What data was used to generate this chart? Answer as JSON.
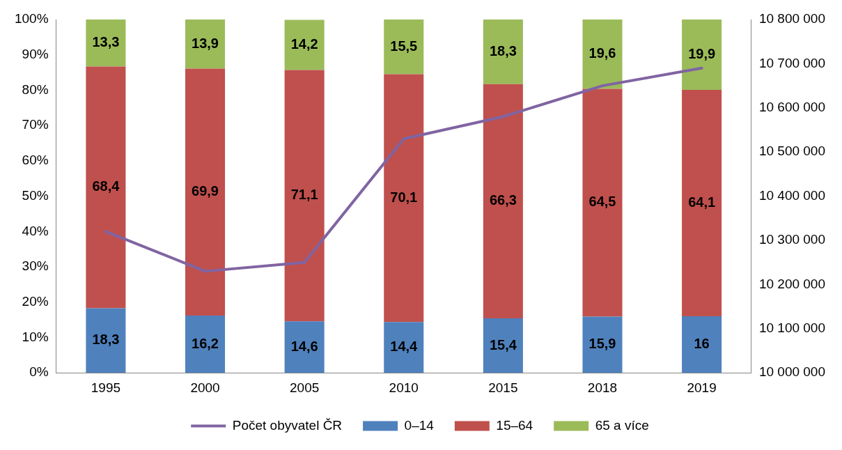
{
  "chart_data": {
    "type": "bar",
    "stacked": true,
    "categories": [
      "1995",
      "2000",
      "2005",
      "2010",
      "2015",
      "2018",
      "2019"
    ],
    "series": [
      {
        "name": "0–14",
        "color": "#4f81bd",
        "values": [
          18.3,
          16.2,
          14.6,
          14.4,
          15.4,
          15.9,
          16
        ],
        "value_labels": [
          "18,3",
          "16,2",
          "14,6",
          "14,4",
          "15,4",
          "15,9",
          "16"
        ]
      },
      {
        "name": "15–64",
        "color": "#c0504d",
        "values": [
          68.4,
          69.9,
          71.1,
          70.1,
          66.3,
          64.5,
          64.1
        ],
        "value_labels": [
          "68,4",
          "69,9",
          "71,1",
          "70,1",
          "66,3",
          "64,5",
          "64,1"
        ]
      },
      {
        "name": "65 a více",
        "color": "#9bbb59",
        "values": [
          13.3,
          13.9,
          14.2,
          15.5,
          18.3,
          19.6,
          19.9
        ],
        "value_labels": [
          "13,3",
          "13,9",
          "14,2",
          "15,5",
          "18,3",
          "19,6",
          "19,9"
        ]
      },
      {
        "name": "Počet obyvatel ČR",
        "type": "line",
        "axis": "y2",
        "color": "#8064a2",
        "values": [
          10320000,
          10230000,
          10250000,
          10530000,
          10580000,
          10650000,
          10690000
        ]
      }
    ],
    "ylim": [
      0,
      100
    ],
    "yticks": [
      {
        "value": 0,
        "label": "0%"
      },
      {
        "value": 10,
        "label": "10%"
      },
      {
        "value": 20,
        "label": "20%"
      },
      {
        "value": 30,
        "label": "30%"
      },
      {
        "value": 40,
        "label": "40%"
      },
      {
        "value": 50,
        "label": "50%"
      },
      {
        "value": 60,
        "label": "60%"
      },
      {
        "value": 70,
        "label": "70%"
      },
      {
        "value": 80,
        "label": "80%"
      },
      {
        "value": 90,
        "label": "90%"
      },
      {
        "value": 100,
        "label": "100%"
      }
    ],
    "y2lim": [
      10000000,
      10800000
    ],
    "y2ticks": [
      {
        "value": 10000000,
        "label": "10 000 000"
      },
      {
        "value": 10100000,
        "label": "10 100 000"
      },
      {
        "value": 10200000,
        "label": "10 200 000"
      },
      {
        "value": 10300000,
        "label": "10 300 000"
      },
      {
        "value": 10400000,
        "label": "10 400 000"
      },
      {
        "value": 10500000,
        "label": "10 500 000"
      },
      {
        "value": 10600000,
        "label": "10 600 000"
      },
      {
        "value": 10700000,
        "label": "10 700 000"
      },
      {
        "value": 10800000,
        "label": "10 800 000"
      }
    ],
    "grid": false,
    "legend": "bottom",
    "marker": "none",
    "line_style": "solid"
  }
}
